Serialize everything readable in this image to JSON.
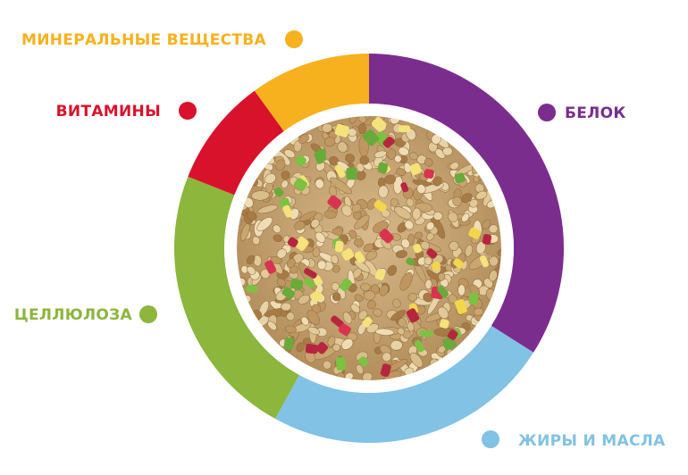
{
  "chart_data": {
    "type": "pie",
    "title": "",
    "series": [
      {
        "name": "БЕЛОК",
        "value": 34,
        "color": "#7b2d8e"
      },
      {
        "name": "ЖИРЫ И МАСЛА",
        "value": 24,
        "color": "#82c2e4"
      },
      {
        "name": "ЦЕЛЛЮЛОЗА",
        "value": 23,
        "color": "#8cb63c"
      },
      {
        "name": "ВИТАМИНЫ",
        "value": 9,
        "color": "#d9122c"
      },
      {
        "name": "МИНЕРАЛЬНЫЕ ВЕЩЕСТВА",
        "value": 10,
        "color": "#f7b11e"
      }
    ],
    "center_image": "seed-mix-photo",
    "grid": false,
    "legend": "around"
  }
}
